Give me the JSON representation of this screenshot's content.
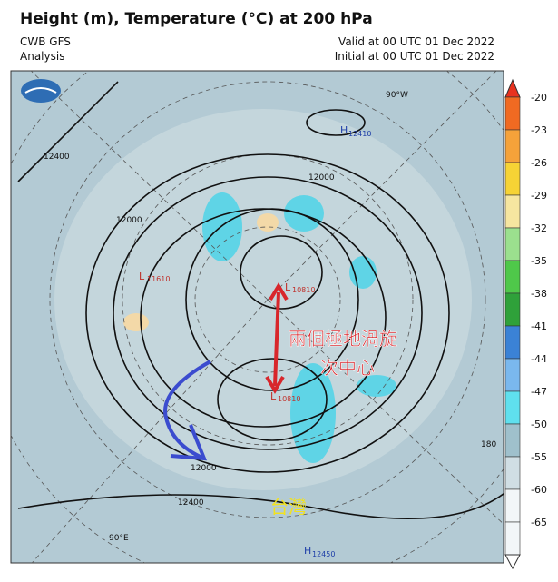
{
  "header": {
    "title": "Height (m), Temperature (°C) at 200 hPa",
    "model": "CWB GFS",
    "analysis": "Analysis",
    "valid": "Valid at 00 UTC 01 Dec 2022",
    "initial": "Initial at 00 UTC 01 Dec 2022"
  },
  "map_labels": [
    "12400",
    "12000",
    "12000",
    "L",
    "11610",
    "H",
    "12410",
    "L",
    "10810",
    "L",
    "10810",
    "90°W",
    "180",
    "12000",
    "12400",
    "90°E",
    "H",
    "12450"
  ],
  "annotations": {
    "vortex_line1": "兩個極地渦旋",
    "vortex_line2": "次中心",
    "taiwan": "台灣"
  },
  "colorbar": {
    "labels": [
      -20,
      -23,
      -26,
      -29,
      -32,
      -35,
      -38,
      -41,
      -44,
      -47,
      -50,
      -55,
      -60,
      -65
    ]
  }
}
